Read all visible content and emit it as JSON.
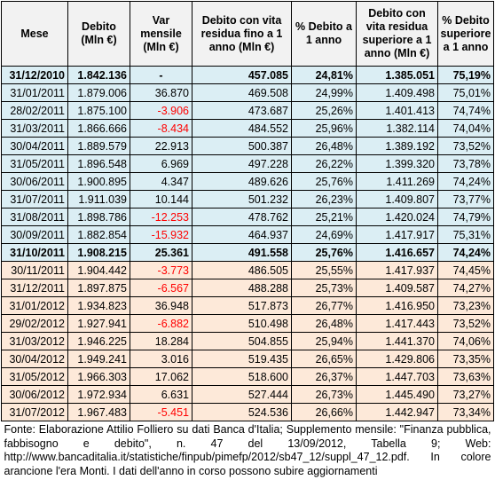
{
  "table": {
    "headers": [
      "Mese",
      "Debito (Mln €)",
      "Var mensile (Mln €)",
      "Debito con vita residua fino a 1 anno (Mln €)",
      "% Debito a 1 anno",
      "Debito con vita residua superiore a 1 anno (Mln €)",
      "% Debito superiore a 1 anno"
    ],
    "rows": [
      {
        "mese": "31/12/2010",
        "debito": "1.842.136",
        "var": "-",
        "breve": "457.085",
        "pct_breve": "24,81%",
        "lungo": "1.385.051",
        "pct_lungo": "75,19%",
        "style": "blue",
        "bold": true,
        "neg": false
      },
      {
        "mese": "31/01/2011",
        "debito": "1.879.006",
        "var": "36.870",
        "breve": "469.508",
        "pct_breve": "24,99%",
        "lungo": "1.409.498",
        "pct_lungo": "75,01%",
        "style": "blue",
        "bold": false,
        "neg": false
      },
      {
        "mese": "28/02/2011",
        "debito": "1.875.100",
        "var": "-3.906",
        "breve": "473.687",
        "pct_breve": "25,26%",
        "lungo": "1.401.413",
        "pct_lungo": "74,74%",
        "style": "blue",
        "bold": false,
        "neg": true
      },
      {
        "mese": "31/03/2011",
        "debito": "1.866.666",
        "var": "-8.434",
        "breve": "484.552",
        "pct_breve": "25,96%",
        "lungo": "1.382.114",
        "pct_lungo": "74,04%",
        "style": "blue",
        "bold": false,
        "neg": true
      },
      {
        "mese": "30/04/2011",
        "debito": "1.889.579",
        "var": "22.913",
        "breve": "500.387",
        "pct_breve": "26,48%",
        "lungo": "1.389.192",
        "pct_lungo": "73,52%",
        "style": "blue",
        "bold": false,
        "neg": false
      },
      {
        "mese": "31/05/2011",
        "debito": "1.896.548",
        "var": "6.969",
        "breve": "497.228",
        "pct_breve": "26,22%",
        "lungo": "1.399.320",
        "pct_lungo": "73,78%",
        "style": "blue",
        "bold": false,
        "neg": false
      },
      {
        "mese": "30/06/2011",
        "debito": "1.900.895",
        "var": "4.347",
        "breve": "489.626",
        "pct_breve": "25,76%",
        "lungo": "1.411.269",
        "pct_lungo": "74,24%",
        "style": "blue",
        "bold": false,
        "neg": false
      },
      {
        "mese": "31/07/2011",
        "debito": "1.911.039",
        "var": "10.144",
        "breve": "501.232",
        "pct_breve": "26,23%",
        "lungo": "1.409.807",
        "pct_lungo": "73,77%",
        "style": "blue",
        "bold": false,
        "neg": false
      },
      {
        "mese": "31/08/2011",
        "debito": "1.898.786",
        "var": "-12.253",
        "breve": "478.762",
        "pct_breve": "25,21%",
        "lungo": "1.420.024",
        "pct_lungo": "74,79%",
        "style": "blue",
        "bold": false,
        "neg": true
      },
      {
        "mese": "30/09/2011",
        "debito": "1.882.854",
        "var": "-15.932",
        "breve": "464.937",
        "pct_breve": "24,69%",
        "lungo": "1.417.917",
        "pct_lungo": "75,31%",
        "style": "blue",
        "bold": false,
        "neg": true
      },
      {
        "mese": "31/10/2011",
        "debito": "1.908.215",
        "var": "25.361",
        "breve": "491.558",
        "pct_breve": "25,76%",
        "lungo": "1.416.657",
        "pct_lungo": "74,24%",
        "style": "blue",
        "bold": true,
        "neg": false
      },
      {
        "mese": "30/11/2011",
        "debito": "1.904.442",
        "var": "-3.773",
        "breve": "486.505",
        "pct_breve": "25,55%",
        "lungo": "1.417.937",
        "pct_lungo": "74,45%",
        "style": "orange",
        "bold": false,
        "neg": true
      },
      {
        "mese": "31/12/2011",
        "debito": "1.897.875",
        "var": "-6.567",
        "breve": "488.288",
        "pct_breve": "25,73%",
        "lungo": "1.409.587",
        "pct_lungo": "74,27%",
        "style": "orange",
        "bold": false,
        "neg": true
      },
      {
        "mese": "31/01/2012",
        "debito": "1.934.823",
        "var": "36.948",
        "breve": "517.873",
        "pct_breve": "26,77%",
        "lungo": "1.416.950",
        "pct_lungo": "73,23%",
        "style": "orange",
        "bold": false,
        "neg": false
      },
      {
        "mese": "29/02/2012",
        "debito": "1.927.941",
        "var": "-6.882",
        "breve": "510.498",
        "pct_breve": "26,48%",
        "lungo": "1.417.443",
        "pct_lungo": "73,52%",
        "style": "orange",
        "bold": false,
        "neg": true
      },
      {
        "mese": "31/03/2012",
        "debito": "1.946.225",
        "var": "18.284",
        "breve": "504.855",
        "pct_breve": "25,94%",
        "lungo": "1.441.370",
        "pct_lungo": "74,06%",
        "style": "orange",
        "bold": false,
        "neg": false
      },
      {
        "mese": "30/04/2012",
        "debito": "1.949.241",
        "var": "3.016",
        "breve": "519.435",
        "pct_breve": "26,65%",
        "lungo": "1.429.806",
        "pct_lungo": "73,35%",
        "style": "orange",
        "bold": false,
        "neg": false
      },
      {
        "mese": "31/05/2012",
        "debito": "1.966.303",
        "var": "17.062",
        "breve": "518.600",
        "pct_breve": "26,37%",
        "lungo": "1.447.703",
        "pct_lungo": "73,63%",
        "style": "orange",
        "bold": false,
        "neg": false
      },
      {
        "mese": "30/06/2012",
        "debito": "1.972.934",
        "var": "6.631",
        "breve": "527.444",
        "pct_breve": "26,73%",
        "lungo": "1.445.490",
        "pct_lungo": "73,27%",
        "style": "orange",
        "bold": false,
        "neg": false
      },
      {
        "mese": "31/07/2012",
        "debito": "1.967.483",
        "var": "-5.451",
        "breve": "524.536",
        "pct_breve": "26,66%",
        "lungo": "1.442.947",
        "pct_lungo": "73,34%",
        "style": "orange",
        "bold": false,
        "neg": true
      }
    ]
  },
  "note": "Fonte: Elaborazione Attilio Folliero su dati Banca d'Italia; Supplemento mensile: \"Finanza pubblica, fabbisogno e debito\", n. 47 del 13/09/2012, Tabella 9; Web: http://www.bancaditalia.it/statistiche/finpub/pimefp/2012/sb47_12/suppl_47_12.pdf. In colore arancione l'era Monti. I dati dell'anno in corso possono subire aggiornamenti",
  "colors": {
    "blue_rows": "#dbeef4",
    "orange_rows": "#fde9d9",
    "negative": "#ff0000"
  }
}
